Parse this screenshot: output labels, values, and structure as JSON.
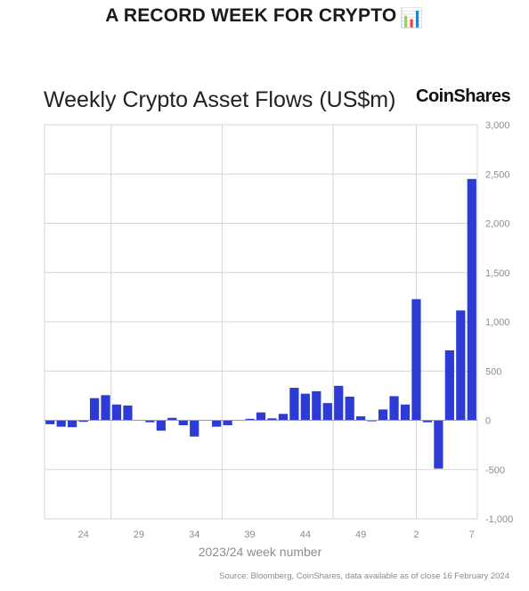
{
  "headline": {
    "text": "A RECORD WEEK FOR CRYPTO",
    "emoji": "📊"
  },
  "brand": "CoinShares",
  "source": "Source: Bloomberg, CoinShares, data available as of close 16 February 2024",
  "colors": {
    "bar": "#2b3bd3",
    "grid": "#d4d4d4",
    "axis_text": "#8c8c8c"
  },
  "chart_data": {
    "type": "bar",
    "title": "Weekly Crypto Asset Flows (US$m)",
    "xlabel": "2023/24 week number",
    "ylabel": "",
    "ylim": [
      -1000,
      3000
    ],
    "y_ticks": [
      -1000,
      -500,
      0,
      500,
      1000,
      1500,
      2000,
      2500,
      3000
    ],
    "y_tick_labels": [
      "-1,000",
      "-500",
      "0",
      "500",
      "1,000",
      "1,500",
      "2,000",
      "2,500",
      "3,000"
    ],
    "y_axis_side": "right",
    "x_tick_labels": [
      "24",
      "29",
      "34",
      "39",
      "44",
      "49",
      "2",
      "7"
    ],
    "x_tick_indices": [
      3,
      8,
      13,
      18,
      23,
      28,
      33,
      38
    ],
    "grid": "vertical lines at weeks 26, 36, 46 and 2 plus horizontal lines at each y tick",
    "vertical_grid_indices": [
      5.5,
      15.5,
      25.5,
      33
    ],
    "legend": "none",
    "categories": [
      "21",
      "22",
      "23",
      "24",
      "25",
      "26",
      "27",
      "28",
      "29",
      "30",
      "31",
      "32",
      "33",
      "34",
      "35",
      "36",
      "37",
      "38",
      "39",
      "40",
      "41",
      "42",
      "43",
      "44",
      "45",
      "46",
      "47",
      "48",
      "49",
      "50",
      "51",
      "52",
      "1",
      "2",
      "3",
      "4",
      "5",
      "6",
      "7"
    ],
    "values": [
      -40,
      -65,
      -70,
      -15,
      225,
      255,
      160,
      150,
      0,
      -20,
      -105,
      25,
      -50,
      -165,
      0,
      -65,
      -50,
      0,
      15,
      80,
      20,
      65,
      330,
      270,
      295,
      175,
      350,
      240,
      40,
      -10,
      110,
      245,
      160,
      1230,
      -20,
      -490,
      710,
      1115,
      2450
    ]
  }
}
